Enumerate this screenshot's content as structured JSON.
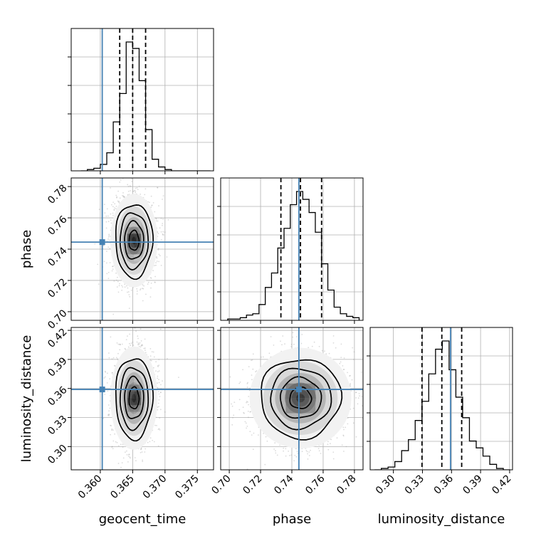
{
  "chart_data": {
    "type": "corner",
    "title": "",
    "parameters": [
      "geocent_time",
      "phase",
      "luminosity_distance"
    ],
    "axis_labels": {
      "geocent_time": "geocent_time",
      "phase": "phase",
      "luminosity_distance": "luminosity_distance"
    },
    "ranges": {
      "geocent_time": [
        0.3555,
        0.3775
      ],
      "phase": [
        0.6945,
        0.7855
      ],
      "luminosity_distance": [
        0.276,
        0.423
      ]
    },
    "ticks": {
      "geocent_time": [
        "0.360",
        "0.365",
        "0.370",
        "0.375"
      ],
      "phase": [
        "0.70",
        "0.72",
        "0.74",
        "0.76",
        "0.78"
      ],
      "luminosity_distance": [
        "0.30",
        "0.33",
        "0.36",
        "0.39",
        "0.42"
      ]
    },
    "truths": {
      "geocent_time": 0.3603,
      "phase": 0.7445,
      "luminosity_distance": 0.359
    },
    "quantiles": {
      "geocent_time": [
        0.363,
        0.365,
        0.367
      ],
      "phase": [
        0.733,
        0.7455,
        0.759
      ],
      "luminosity_distance": [
        0.3295,
        0.35,
        0.3705
      ]
    },
    "histograms": {
      "geocent_time": {
        "bins": [
          0.357,
          0.358,
          0.359,
          0.36,
          0.361,
          0.362,
          0.363,
          0.364,
          0.365,
          0.366,
          0.367,
          0.368,
          0.369,
          0.37,
          0.371,
          0.372,
          0.373,
          0.374,
          0.375,
          0.376,
          0.377
        ],
        "counts": [
          0,
          1,
          2,
          5,
          14,
          38,
          60,
          100,
          95,
          70,
          32,
          9,
          3,
          1,
          0,
          0,
          0,
          0,
          0,
          0
        ]
      },
      "phase": {
        "bins": [
          0.699,
          0.703,
          0.707,
          0.711,
          0.715,
          0.719,
          0.723,
          0.727,
          0.731,
          0.735,
          0.739,
          0.743,
          0.747,
          0.751,
          0.755,
          0.759,
          0.763,
          0.767,
          0.771,
          0.775,
          0.779,
          0.783
        ],
        "counts": [
          1,
          1,
          2,
          4,
          5,
          12,
          25,
          36,
          55,
          70,
          88,
          98,
          92,
          82,
          67,
          43,
          23,
          10,
          5,
          3,
          2
        ]
      },
      "luminosity_distance": {
        "bins": [
          0.2805,
          0.2875,
          0.2945,
          0.3015,
          0.3085,
          0.3155,
          0.3225,
          0.3295,
          0.3365,
          0.3435,
          0.3505,
          0.3575,
          0.3645,
          0.3715,
          0.3785,
          0.3855,
          0.3925,
          0.3995,
          0.4065,
          0.4135,
          0.4205
        ],
        "counts": [
          0,
          1,
          2,
          6,
          14,
          22,
          36,
          50,
          70,
          88,
          94,
          73,
          53,
          38,
          21,
          16,
          10,
          4,
          1,
          0
        ]
      }
    },
    "contours": {
      "geocent_time|phase": {
        "center": [
          0.3652,
          0.7455
        ],
        "sigma": [
          0.0014,
          0.0115
        ]
      },
      "geocent_time|luminosity_distance": {
        "center": [
          0.3652,
          0.35
        ],
        "sigma": [
          0.0014,
          0.0205
        ]
      },
      "phase|luminosity_distance": {
        "center": [
          0.7455,
          0.35
        ],
        "sigma": [
          0.0125,
          0.02
        ]
      }
    },
    "grid": true,
    "colors": {
      "truth": "#4682b4",
      "hist": "#000000",
      "grid": "#b0b0b0",
      "samples": "#999999"
    }
  }
}
